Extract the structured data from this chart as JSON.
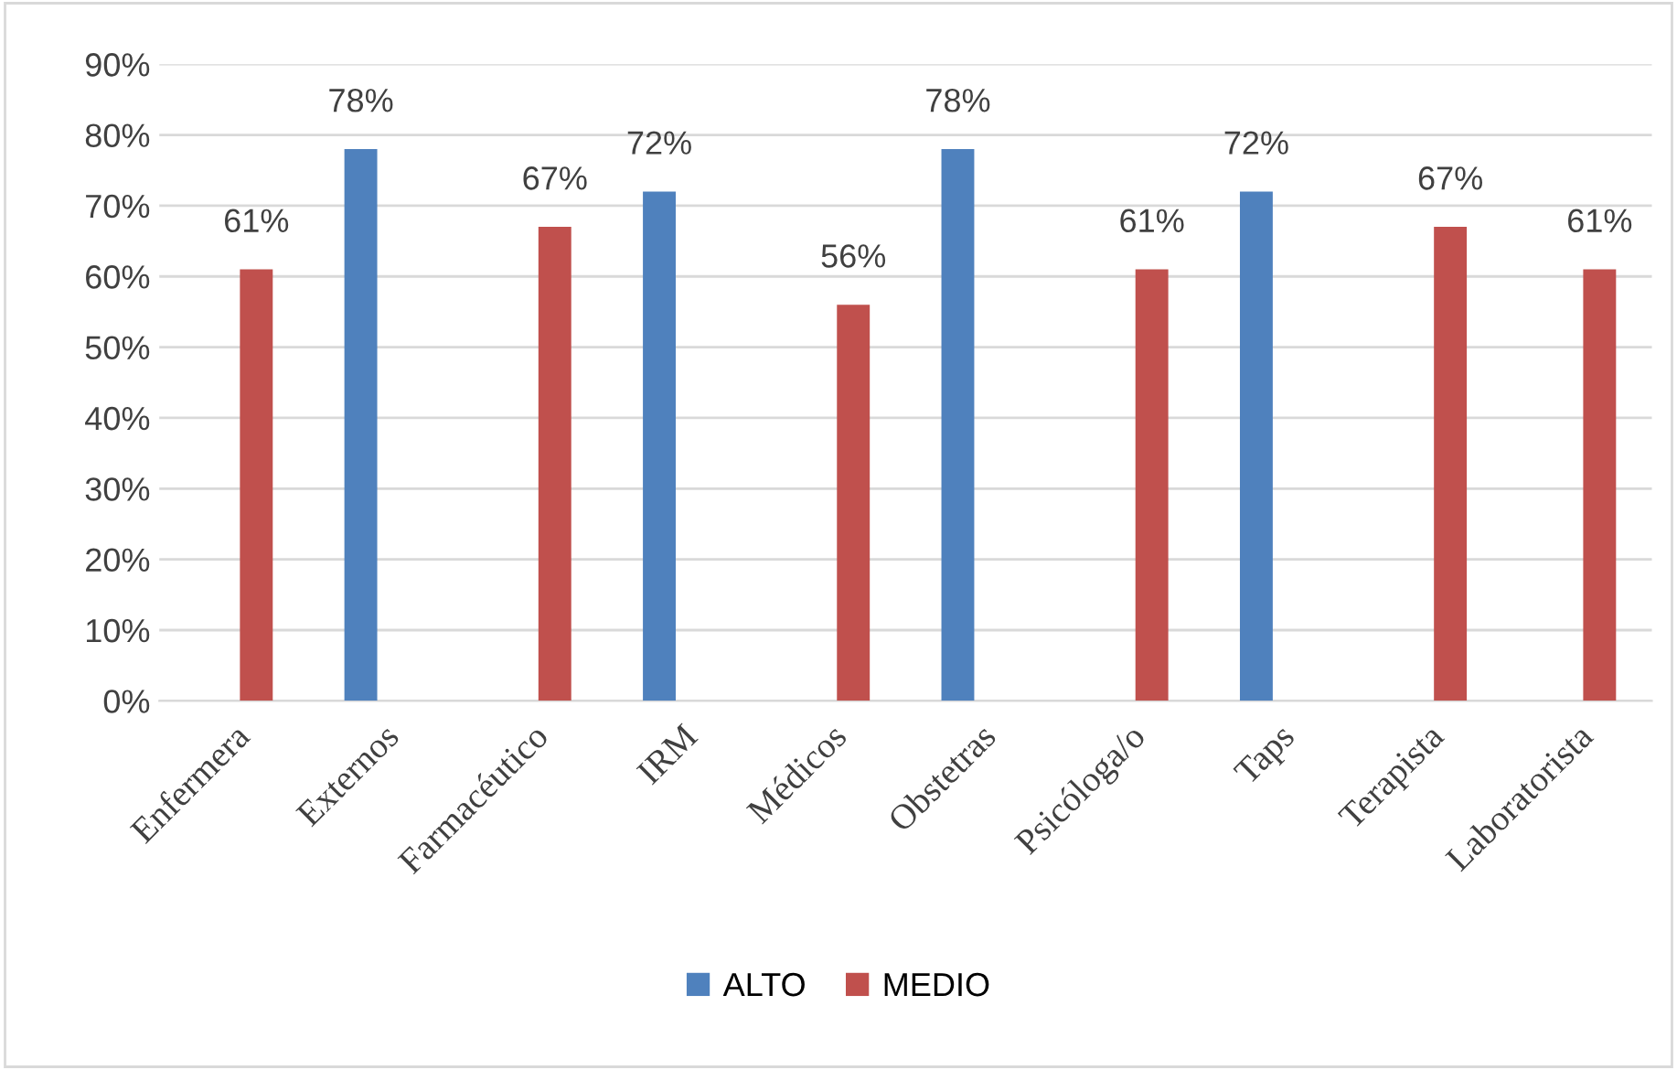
{
  "chart_data": {
    "type": "bar",
    "categories": [
      "Enfermera",
      "Externos",
      "Farmacéutico",
      "IRM",
      "Médicos",
      "Obstetras",
      "Psicóloga/o",
      "Taps",
      "Terapista",
      "Laboratorista"
    ],
    "series": [
      {
        "name": "ALTO",
        "color": "#4f81bd",
        "values": [
          null,
          78,
          null,
          72,
          null,
          78,
          null,
          72,
          null,
          null
        ],
        "value_labels": [
          null,
          "78%",
          null,
          "72%",
          null,
          "78%",
          null,
          "72%",
          null,
          null
        ]
      },
      {
        "name": "MEDIO",
        "color": "#c0504d",
        "values": [
          61,
          null,
          67,
          null,
          56,
          null,
          61,
          null,
          67,
          61
        ],
        "value_labels": [
          "61%",
          null,
          "67%",
          null,
          "56%",
          null,
          "61%",
          null,
          "67%",
          "61%"
        ]
      }
    ],
    "ylim": [
      0,
      90
    ],
    "yticks": [
      {
        "value": 0,
        "label": "0%"
      },
      {
        "value": 10,
        "label": "10%"
      },
      {
        "value": 20,
        "label": "20%"
      },
      {
        "value": 30,
        "label": "30%"
      },
      {
        "value": 40,
        "label": "40%"
      },
      {
        "value": 50,
        "label": "50%"
      },
      {
        "value": 60,
        "label": "60%"
      },
      {
        "value": 70,
        "label": "70%"
      },
      {
        "value": 80,
        "label": "80%"
      },
      {
        "value": 90,
        "label": "90%"
      }
    ],
    "grid": "y",
    "legend": "bottom"
  }
}
